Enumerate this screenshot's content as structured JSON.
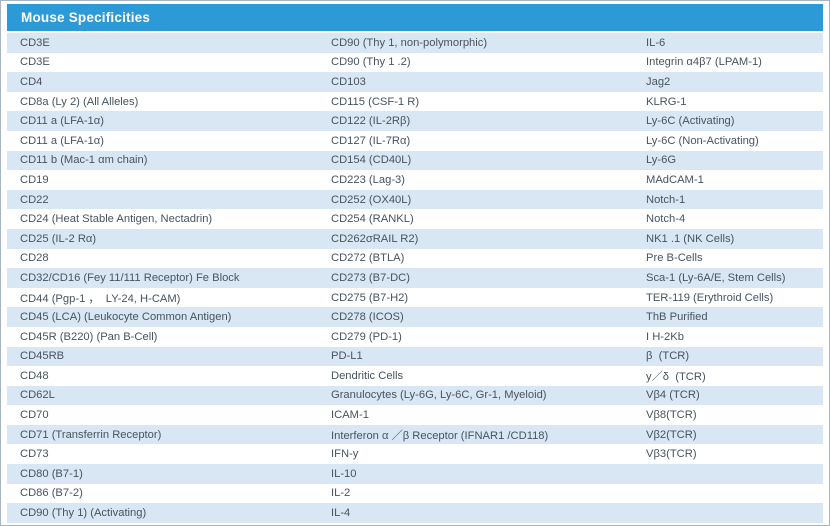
{
  "header": {
    "title": "Mouse Specificities"
  },
  "colors": {
    "header_bg": "#2D9AD8",
    "header_text": "#FFFFFF",
    "row_alt_bg": "#D9E7F4",
    "row_bg": "#FFFFFF",
    "text": "#47545F",
    "border": "#A7B4C1"
  },
  "table": {
    "columns": 3,
    "rows": [
      [
        "CD3E",
        "CD90 (Thy 1, non-polymorphic)",
        "IL-6"
      ],
      [
        "CD3E",
        "CD90 (Thy 1 .2)",
        "Integrin α4β7 (LPAM-1)"
      ],
      [
        "CD4",
        "CD103",
        "Jag2"
      ],
      [
        "CD8a (Ly 2) (All Alleles)",
        "CD115 (CSF-1 R)",
        "KLRG-1"
      ],
      [
        "CD11 a (LFA-1α)",
        "CD122 (IL-2Rβ)",
        "Ly-6C (Activating)"
      ],
      [
        "CD11 a (LFA-1α)",
        "CD127 (IL-7Rα)",
        "Ly-6C (Non-Activating)"
      ],
      [
        "CD11 b (Mac-1 αm chain)",
        "CD154 (CD40L)",
        "Ly-6G"
      ],
      [
        "CD19",
        "CD223 (Lag-3)",
        "MAdCAM-1"
      ],
      [
        "CD22",
        "CD252 (OX40L)",
        "Notch-1"
      ],
      [
        "CD24 (Heat Stable Antigen, Nectadrin)",
        "CD254 (RANKL)",
        "Notch-4"
      ],
      [
        "CD25 (IL-2 Rα)",
        "CD262σRAIL R2)",
        "NK1 .1 (NK Cells)"
      ],
      [
        "CD28",
        "CD272 (BTLA)",
        "Pre B-Cells"
      ],
      [
        "CD32/CD16 (Fey 11/111 Receptor) Fe Block",
        "CD273 (B7-DC)",
        "Sca-1 (Ly-6A/E, Stem Cells)"
      ],
      [
        "CD44 (Pgp-1 ，  LY-24, H-CAM)",
        "CD275 (B7-H2)",
        "TER-119 (Erythroid Cells)"
      ],
      [
        "CD45 (LCA) (Leukocyte Common Antigen)",
        "CD278 (ICOS)",
        "ThB Purified"
      ],
      [
        "CD45R (B220) (Pan B-Cell)",
        "CD279 (PD-1)",
        "I H-2Kb"
      ],
      [
        "CD45RB",
        "PD-L1",
        "β  (TCR)"
      ],
      [
        "CD48",
        "Dendritic Cells",
        "y／δ  (TCR)"
      ],
      [
        "CD62L",
        "Granulocytes (Ly-6G, Ly-6C, Gr-1, Myeloid)",
        "Vβ4 (TCR)"
      ],
      [
        "CD70",
        "ICAM-1",
        "Vβ8(TCR)"
      ],
      [
        "CD71 (Transferrin Receptor)",
        "Interferon α ／β Receptor (IFNAR1 /CD118)",
        "Vβ2(TCR)"
      ],
      [
        "CD73",
        "IFN-y",
        "Vβ3(TCR)"
      ],
      [
        "CD80 (B7-1)",
        "IL-10",
        ""
      ],
      [
        "CD86 (B7-2)",
        "IL-2",
        ""
      ],
      [
        "CD90 (Thy 1) (Activating)",
        "IL-4",
        ""
      ]
    ]
  }
}
